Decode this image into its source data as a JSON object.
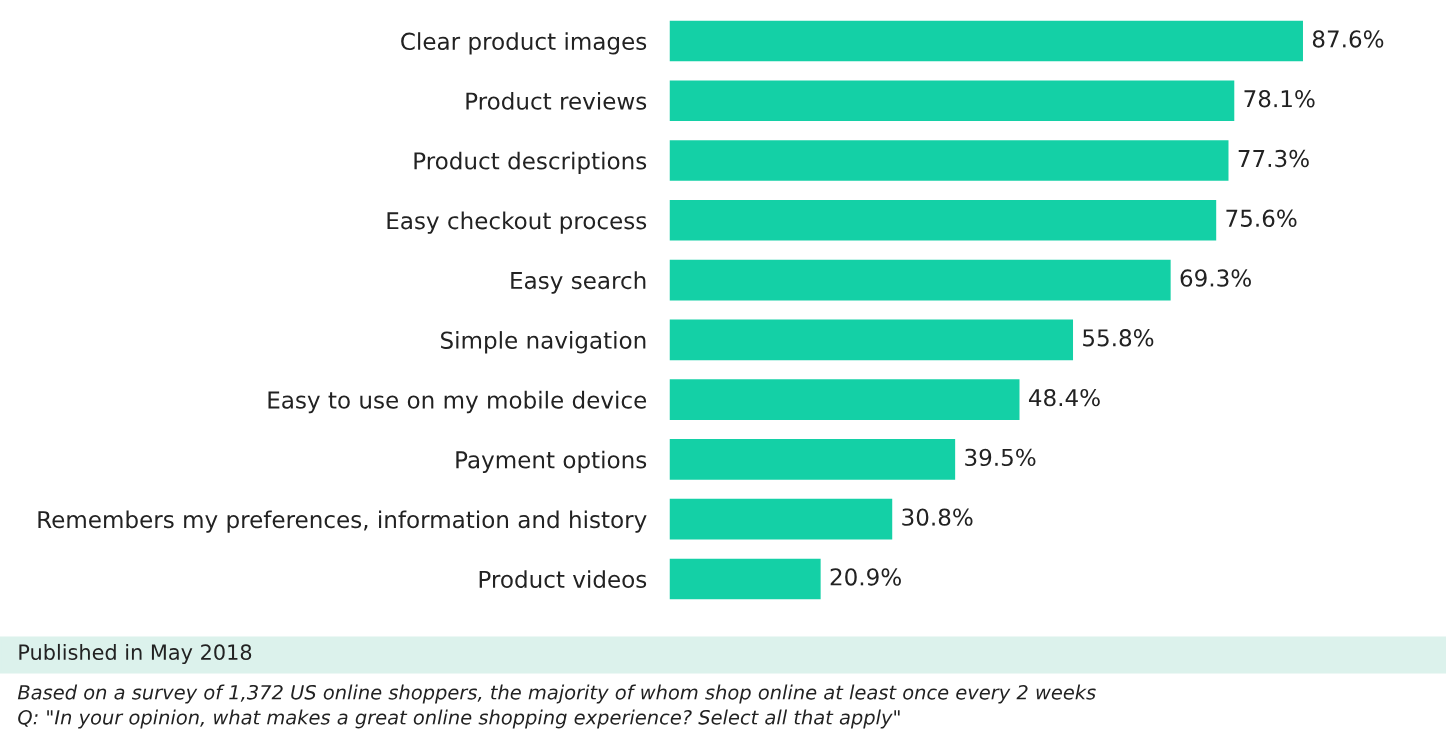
{
  "chart_data": {
    "type": "bar",
    "orientation": "horizontal",
    "categories": [
      "Clear product images",
      "Product reviews",
      "Product descriptions",
      "Easy checkout process",
      "Easy search",
      "Simple navigation",
      "Easy to use on my mobile device",
      "Payment options",
      "Remembers my preferences, information and history",
      "Product videos"
    ],
    "values": [
      87.6,
      78.1,
      77.3,
      75.6,
      69.3,
      55.8,
      48.4,
      39.5,
      30.8,
      20.9
    ],
    "value_labels": [
      "87.6%",
      "78.1%",
      "77.3%",
      "75.6%",
      "69.3%",
      "55.8%",
      "48.4%",
      "39.5%",
      "30.8%",
      "20.9%"
    ],
    "color": "#14d0a6",
    "tick_labels": "y",
    "grid": false,
    "legend": false,
    "annotations": [
      "Published in May 2018",
      "Based on a survey of 1,372 US online shoppers, the majority of whom shop online at least once every 2 weeks",
      "Q: \"In your opinion, what makes a great online shopping experience? Select all that apply\""
    ]
  }
}
